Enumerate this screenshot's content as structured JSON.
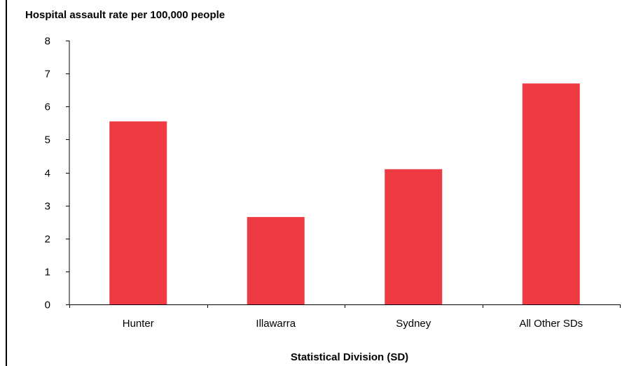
{
  "chart_data": {
    "type": "bar",
    "title": "Hospital assault rate per 100,000 people",
    "xlabel": "Statistical Division (SD)",
    "ylabel": "",
    "categories": [
      "Hunter",
      "Illawarra",
      "Sydney",
      "All Other SDs"
    ],
    "values": [
      5.55,
      2.65,
      4.1,
      6.7
    ],
    "ylim": [
      0,
      8
    ],
    "yticks": [
      "0",
      "1",
      "2",
      "3",
      "4",
      "5",
      "6",
      "7",
      "8"
    ],
    "grid": false,
    "legend": "none",
    "bar_color": "#EE3A43"
  }
}
